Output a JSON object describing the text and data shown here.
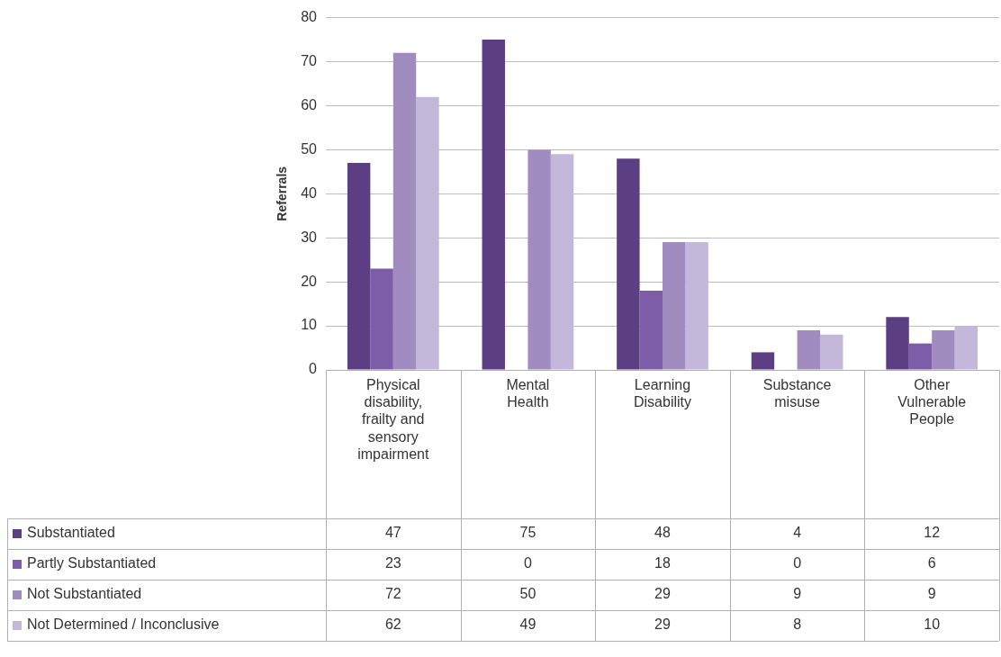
{
  "chart_data": {
    "type": "bar",
    "ylabel": "Referrals",
    "categories": [
      "Physical disability, frailty and sensory impairment",
      "Mental Health",
      "Learning Disability",
      "Substance misuse",
      "Other Vulnerable People"
    ],
    "series": [
      {
        "name": "Substantiated",
        "color": "#5b3f82",
        "values": [
          47,
          75,
          48,
          4,
          12
        ]
      },
      {
        "name": "Partly Substantiated",
        "color": "#7d5ca8",
        "values": [
          23,
          0,
          18,
          0,
          6
        ]
      },
      {
        "name": "Not Substantiated",
        "color": "#a08cbf",
        "values": [
          72,
          50,
          29,
          9,
          9
        ]
      },
      {
        "name": "Not Determined / Inconclusive",
        "color": "#c3b8d9",
        "values": [
          62,
          49,
          29,
          8,
          10
        ]
      }
    ],
    "ylim": [
      0,
      80
    ],
    "yticks": [
      0,
      10,
      20,
      30,
      40,
      50,
      60,
      70,
      80
    ],
    "grid": "y",
    "legend": "bottom",
    "data_labels": true
  }
}
